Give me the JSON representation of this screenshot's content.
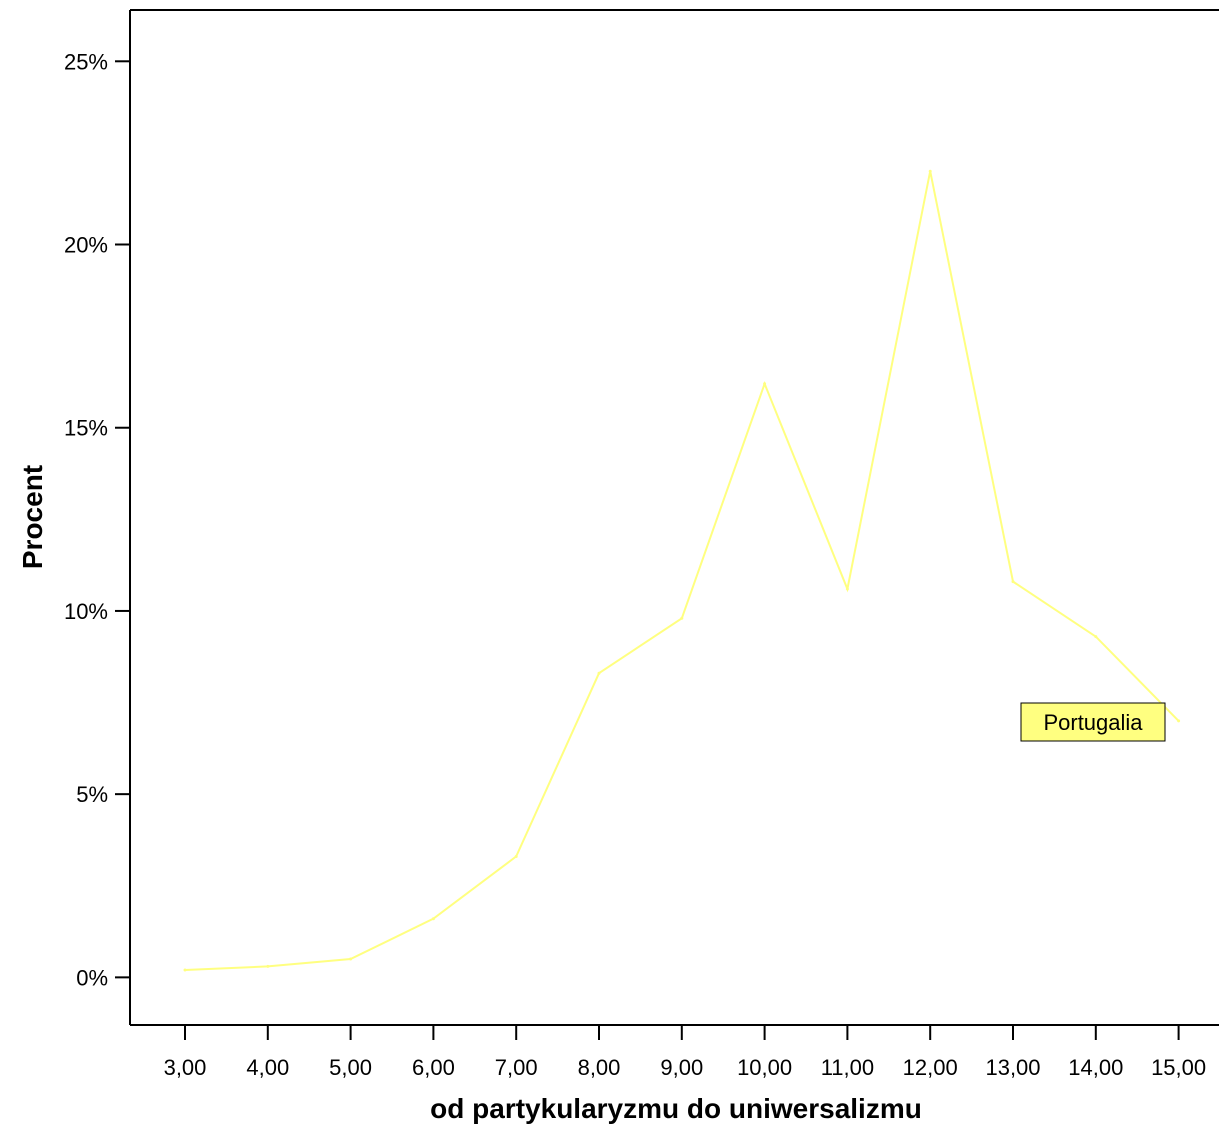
{
  "chart_data": {
    "type": "line",
    "xlabel": "od partykularyzmu do uniwersalizmu",
    "ylabel": "Procent",
    "categories": [
      "3,00",
      "4,00",
      "5,00",
      "6,00",
      "7,00",
      "8,00",
      "9,00",
      "10,00",
      "11,00",
      "12,00",
      "13,00",
      "14,00",
      "15,00"
    ],
    "y_ticks": [
      "0%",
      "5%",
      "10%",
      "15%",
      "20%",
      "25%"
    ],
    "y_tick_values": [
      0,
      5,
      10,
      15,
      20,
      25
    ],
    "ylim": [
      -1.3,
      26.4
    ],
    "grid": false,
    "series": [
      {
        "name": "Portugalia",
        "values": [
          0.2,
          0.3,
          0.5,
          1.6,
          3.3,
          8.3,
          9.8,
          16.2,
          10.6,
          22.0,
          10.8,
          9.3,
          7.0
        ],
        "color": "#ffff80"
      }
    ],
    "series_label_background": "#ffff80",
    "series_label_position": "right"
  }
}
